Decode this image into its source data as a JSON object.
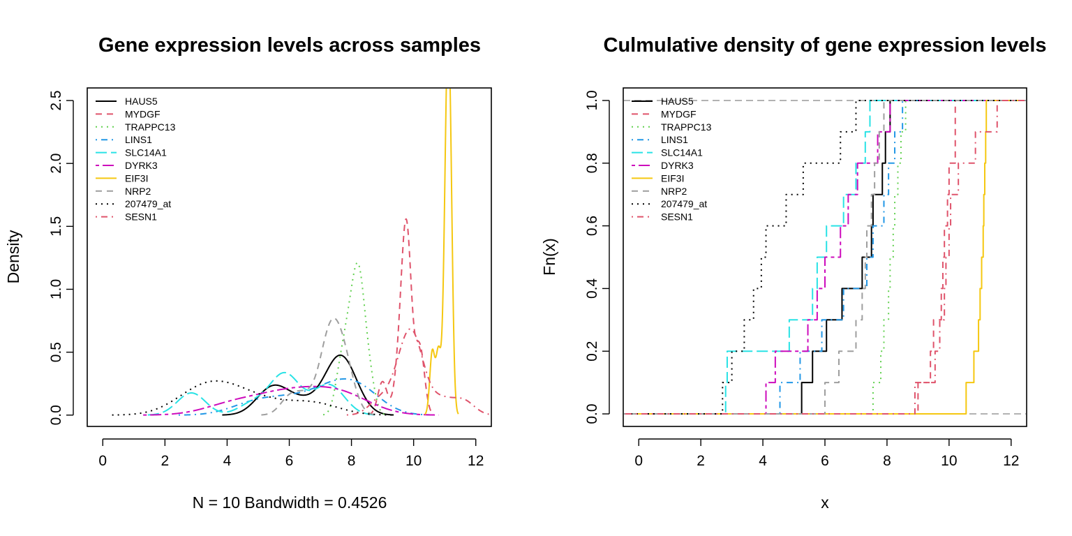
{
  "colors": {
    "HAUS5": "#000000",
    "MYDGF": "#DF536B",
    "TRAPPC13": "#61D04F",
    "LINS1": "#2297E6",
    "SLC14A1": "#28E2E5",
    "DYRK3": "#CD0BBC",
    "EIF3I": "#F5C710",
    "NRP2": "#9E9E9E",
    "207479_at": "#000000",
    "SESN1": "#DF536B"
  },
  "chart_data": [
    {
      "type": "line",
      "title": "Gene expression levels across samples",
      "xlabel": "N = 10   Bandwidth = 0.4526",
      "ylabel": "Density",
      "xlim": [
        -0.5,
        12.5
      ],
      "ylim": [
        -0.09,
        2.6
      ],
      "x_ticks": [
        "0",
        "2",
        "4",
        "6",
        "8",
        "10",
        "12"
      ],
      "y_ticks": [
        "0.0",
        "0.5",
        "1.0",
        "1.5",
        "2.0",
        "2.5"
      ],
      "legend_position": "top-left",
      "legend": [
        "HAUS5",
        "MYDGF",
        "TRAPPC13",
        "LINS1",
        "SLC14A1",
        "DYRK3",
        "EIF3I",
        "NRP2",
        "207479_at",
        "SESN1"
      ],
      "series": [
        {
          "name": "HAUS5",
          "style": "solid",
          "samples": [
            5.2,
            5.5,
            5.8,
            6.5,
            7.3,
            7.5,
            7.6,
            7.7,
            7.8,
            8.0
          ],
          "bw": 0.4526
        },
        {
          "name": "MYDGF",
          "style": "dashed",
          "samples": [
            9.0,
            9.5,
            9.7,
            9.7,
            9.75,
            9.8,
            9.8,
            9.85,
            10.2,
            10.2
          ],
          "bw": 0.15
        },
        {
          "name": "TRAPPC13",
          "style": "dotted",
          "samples": [
            7.6,
            7.8,
            7.9,
            8.05,
            8.1,
            8.2,
            8.25,
            8.3,
            8.4,
            8.6
          ],
          "bw": 0.17
        },
        {
          "name": "LINS1",
          "style": "dotdash",
          "samples": [
            4.6,
            5.3,
            5.9,
            6.6,
            7.1,
            7.5,
            7.8,
            8.0,
            8.3,
            8.5
          ],
          "bw": 0.72
        },
        {
          "name": "SLC14A1",
          "style": "longdash",
          "samples": [
            2.8,
            2.9,
            4.8,
            5.6,
            5.8,
            5.9,
            6.1,
            7.0,
            7.3,
            7.5
          ],
          "bw": 0.45
        },
        {
          "name": "DYRK3",
          "style": "twodash",
          "samples": [
            4.0,
            4.4,
            5.5,
            5.7,
            6.0,
            6.7,
            7.0,
            7.5,
            7.8,
            8.1
          ],
          "bw": 0.9
        },
        {
          "name": "EIF3I",
          "style": "solid",
          "samples": [
            10.6,
            10.8,
            11.0,
            11.05,
            11.08,
            11.1,
            11.12,
            11.15,
            11.18,
            11.2
          ],
          "bw": 0.08
        },
        {
          "name": "NRP2",
          "style": "dashed",
          "samples": [
            6.0,
            6.5,
            7.1,
            7.2,
            7.3,
            7.4,
            7.5,
            7.6,
            7.8,
            7.9
          ],
          "bw": 0.3
        },
        {
          "name": "207479_at",
          "style": "dotted",
          "samples": [
            2.7,
            3.0,
            3.4,
            3.6,
            3.9,
            4.1,
            4.8,
            5.3,
            6.5,
            7.0
          ],
          "bw": 0.8
        },
        {
          "name": "SESN1",
          "style": "dotdash",
          "samples": [
            8.9,
            9.5,
            9.7,
            9.85,
            9.9,
            10.0,
            10.0,
            10.2,
            10.9,
            11.6
          ],
          "bw": 0.35
        }
      ]
    },
    {
      "type": "line",
      "title": "Culmulative density of gene expression levels",
      "xlabel": "x",
      "ylabel": "Fn(x)",
      "xlim": [
        -0.5,
        12.5
      ],
      "ylim": [
        -0.04,
        1.04
      ],
      "x_ticks": [
        "0",
        "2",
        "4",
        "6",
        "8",
        "10",
        "12"
      ],
      "y_ticks": [
        "0.0",
        "0.2",
        "0.4",
        "0.6",
        "0.8",
        "1.0"
      ],
      "legend_position": "top-left",
      "legend": [
        "HAUS5",
        "MYDGF",
        "TRAPPC13",
        "LINS1",
        "SLC14A1",
        "DYRK3",
        "EIF3I",
        "NRP2",
        "207479_at",
        "SESN1"
      ],
      "series": [
        {
          "name": "HAUS5",
          "style": "solid",
          "values": [
            5.25,
            5.6,
            6.05,
            6.55,
            7.2,
            7.5,
            7.55,
            7.85,
            7.95,
            8.1
          ]
        },
        {
          "name": "MYDGF",
          "style": "dashed",
          "values": [
            9.0,
            9.4,
            9.5,
            9.75,
            9.8,
            9.85,
            9.95,
            10.0,
            10.2,
            10.2
          ]
        },
        {
          "name": "TRAPPC13",
          "style": "dotted",
          "values": [
            7.55,
            7.8,
            7.9,
            8.05,
            8.1,
            8.2,
            8.25,
            8.35,
            8.45,
            8.6
          ]
        },
        {
          "name": "LINS1",
          "style": "dotdash",
          "values": [
            4.55,
            5.2,
            5.9,
            6.6,
            7.35,
            7.55,
            7.9,
            8.05,
            8.25,
            8.5
          ]
        },
        {
          "name": "SLC14A1",
          "style": "longdash",
          "values": [
            2.8,
            2.85,
            4.85,
            5.6,
            5.75,
            6.05,
            6.6,
            7.0,
            7.3,
            7.45
          ]
        },
        {
          "name": "DYRK3",
          "style": "twodash",
          "values": [
            4.1,
            4.4,
            5.45,
            5.75,
            6.0,
            6.5,
            6.75,
            7.05,
            7.7,
            8.1
          ]
        },
        {
          "name": "EIF3I",
          "style": "solid",
          "values": [
            10.55,
            10.8,
            10.95,
            11.0,
            11.05,
            11.1,
            11.12,
            11.15,
            11.18,
            11.2
          ]
        },
        {
          "name": "NRP2",
          "style": "dashed",
          "values": [
            6.0,
            6.45,
            7.0,
            7.2,
            7.3,
            7.35,
            7.5,
            7.6,
            7.75,
            7.9
          ]
        },
        {
          "name": "207479_at",
          "style": "dotted",
          "values": [
            2.7,
            3.0,
            3.4,
            3.7,
            3.95,
            4.1,
            4.75,
            5.3,
            6.5,
            7.0
          ]
        },
        {
          "name": "SESN1",
          "style": "dotdash",
          "values": [
            8.9,
            9.55,
            9.7,
            9.85,
            9.9,
            10.0,
            10.05,
            10.3,
            10.85,
            11.55
          ]
        }
      ]
    }
  ]
}
